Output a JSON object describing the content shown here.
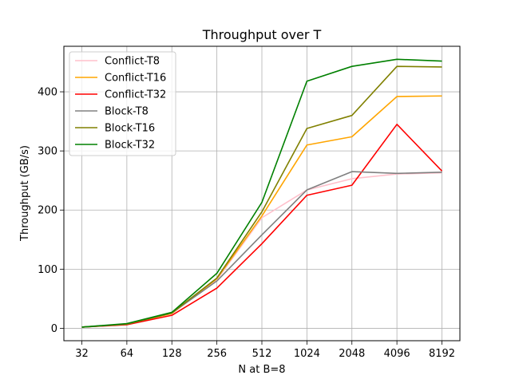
{
  "chart_data": {
    "type": "line",
    "title": "Throughput over T",
    "xlabel": "N at B=8",
    "ylabel": "Throughput (GB/s)",
    "x": [
      "32",
      "64",
      "128",
      "256",
      "512",
      "1024",
      "2048",
      "4096",
      "8192"
    ],
    "yticks": [
      0,
      100,
      200,
      300,
      400
    ],
    "ylim": [
      -21,
      477
    ],
    "grid": true,
    "legend_position": "top-left",
    "series": [
      {
        "name": "Conflict-T8",
        "color": "#ffc0cb",
        "values": [
          2,
          7,
          25,
          82,
          187,
          234,
          253,
          261,
          263
        ]
      },
      {
        "name": "Conflict-T16",
        "color": "#ffa500",
        "values": [
          2,
          7,
          25,
          84,
          190,
          310,
          324,
          392,
          393
        ]
      },
      {
        "name": "Conflict-T32",
        "color": "#ff0000",
        "values": [
          2,
          6,
          22,
          68,
          143,
          225,
          242,
          345,
          266
        ]
      },
      {
        "name": "Block-T8",
        "color": "#808080",
        "values": [
          2,
          7,
          26,
          80,
          158,
          234,
          265,
          262,
          264
        ]
      },
      {
        "name": "Block-T16",
        "color": "#808000",
        "values": [
          2,
          7,
          26,
          85,
          197,
          338,
          360,
          443,
          442
        ]
      },
      {
        "name": "Block-T32",
        "color": "#008000",
        "values": [
          2,
          8,
          27,
          93,
          213,
          418,
          443,
          455,
          452
        ]
      }
    ]
  }
}
